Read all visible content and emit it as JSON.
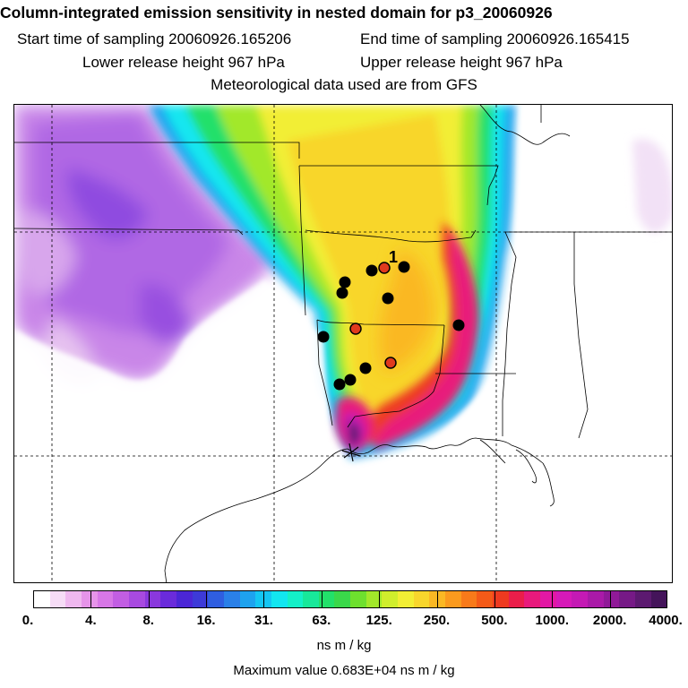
{
  "header": {
    "title": "Column-integrated emission sensitivity in nested domain for p3_20060926",
    "start_time": "Start time of sampling 20060926.165206",
    "end_time": "End time of sampling 20060926.165415",
    "lower_release": "Lower release height  967 hPa",
    "upper_release": "Upper release height  967 hPa",
    "met_data": "Meteorological data used are from GFS"
  },
  "map": {
    "receptor_label": "1",
    "site_marker_colors": {
      "black": "#000000",
      "red": "#e03a1e"
    }
  },
  "colorbar": {
    "colors": [
      "#ffffff",
      "#f6dcf6",
      "#efb8ef",
      "#e694e9",
      "#d777e6",
      "#c25ee3",
      "#a84ae0",
      "#8a38dd",
      "#6a2bdb",
      "#4b26d6",
      "#3d3ad8",
      "#2f5ee0",
      "#2a80e8",
      "#1ea2ee",
      "#14c6f2",
      "#12e6f0",
      "#14f0c8",
      "#18e89a",
      "#22e06a",
      "#3ad84a",
      "#6ee02e",
      "#a2e82a",
      "#d0ee2c",
      "#f2ee34",
      "#f8d62c",
      "#fab824",
      "#fa9a1e",
      "#f87a1a",
      "#f45a18",
      "#ee3a20",
      "#ea1e4a",
      "#e81a7c",
      "#e218a4",
      "#d61ab8",
      "#c41ab4",
      "#aa1aa8",
      "#901a98",
      "#761a86",
      "#5c1a70",
      "#44145a"
    ],
    "tick_labels": [
      "0.",
      "4.",
      "8.",
      "16.",
      "31.",
      "63.",
      "125.",
      "250.",
      "500.",
      "1000.",
      "2000.",
      "4000."
    ],
    "units": "ns m / kg",
    "max_value": "Maximum value  0.683E+04 ns m / kg"
  }
}
